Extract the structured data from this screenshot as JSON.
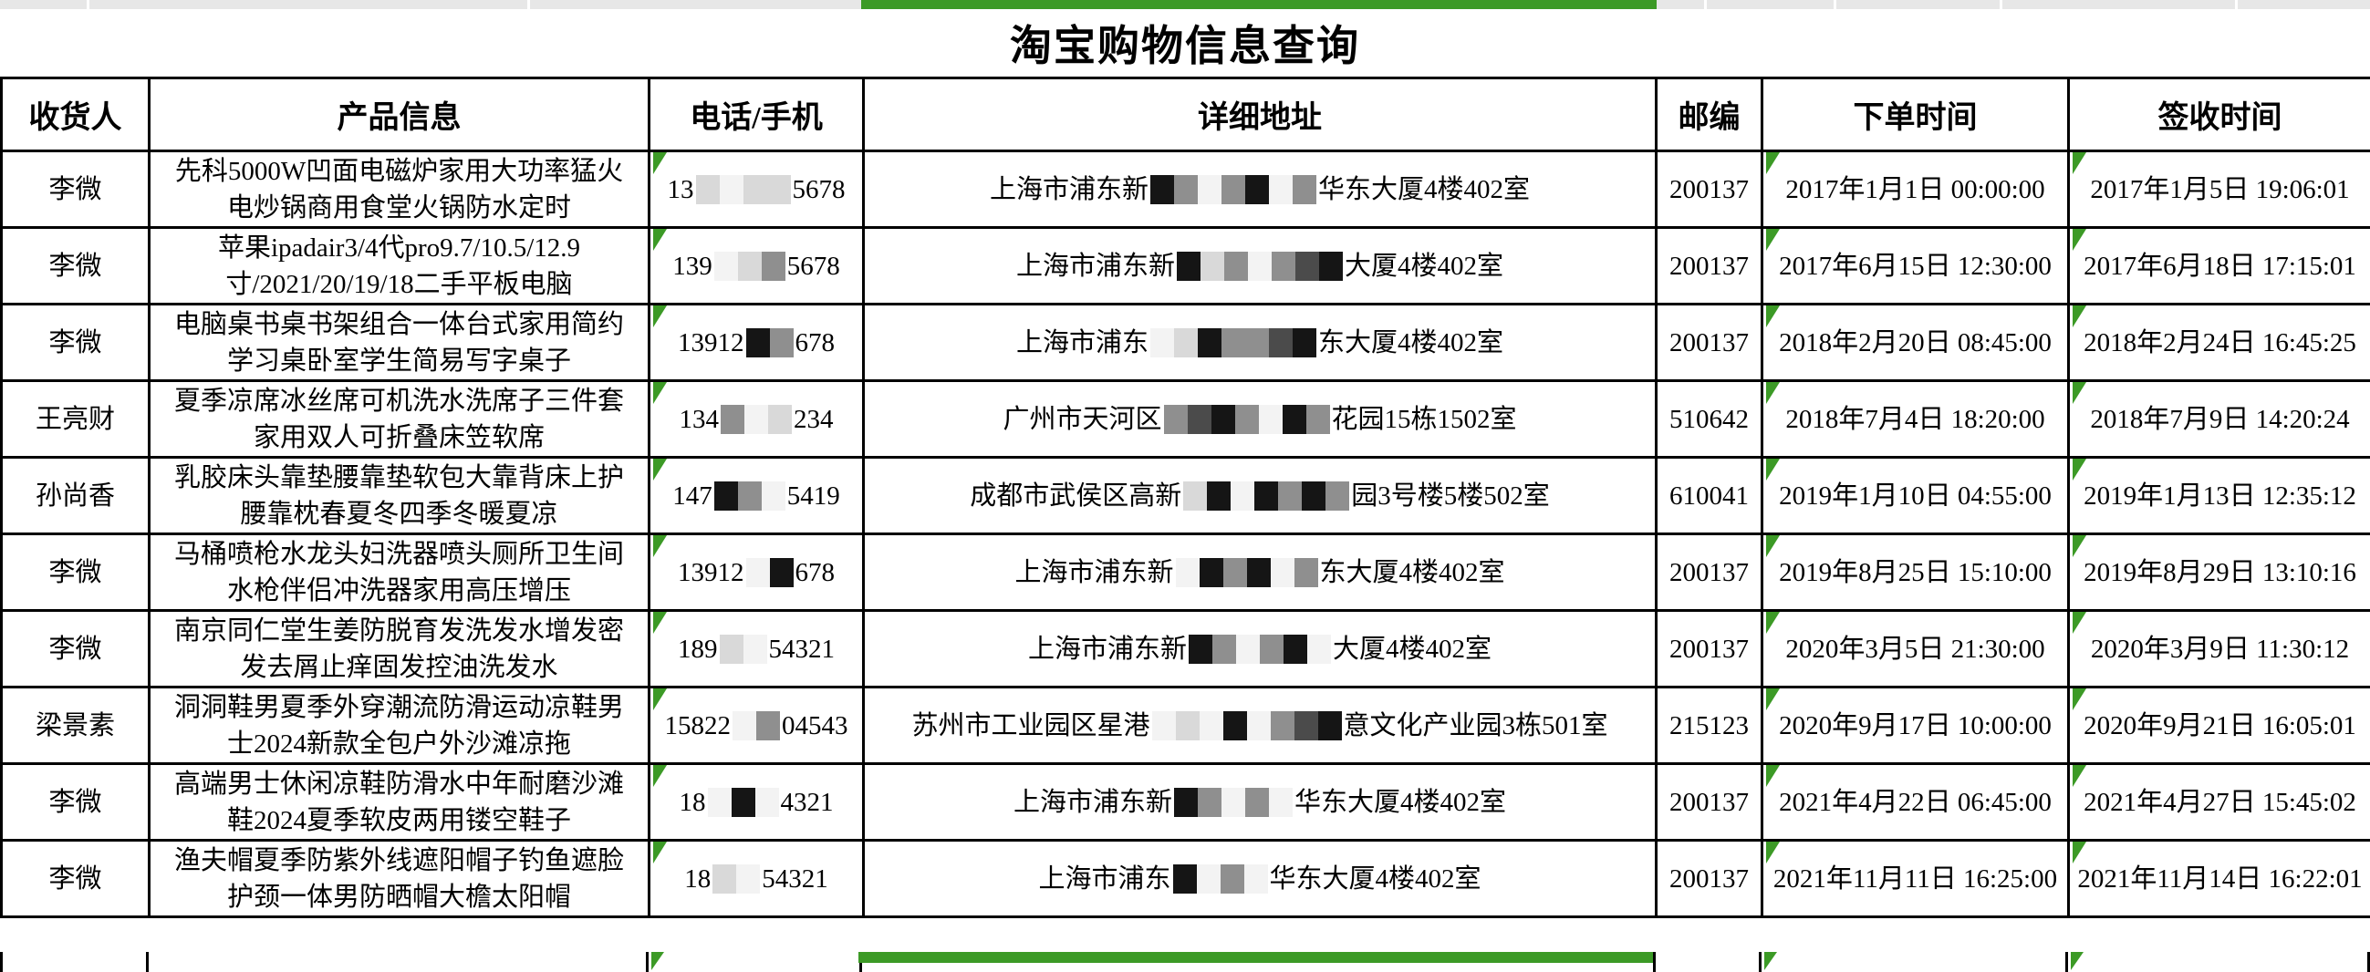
{
  "page": {
    "title": "淘宝购物信息查询"
  },
  "colors": {
    "accent_green": "#3c9a26",
    "grid_black": "#000000",
    "strip_grey": "#e7e7e7"
  },
  "redaction_palette": {
    "w": "#f3f3f3",
    "l": "#d9d9d9",
    "g": "#8f8f8f",
    "d": "#4b4b4b",
    "k": "#151515"
  },
  "table": {
    "headers": [
      "收货人",
      "产品信息",
      "电话/手机",
      "详细地址",
      "邮编",
      "下单时间",
      "签收时间"
    ],
    "rows": [
      {
        "recipient": "李微",
        "product": "先科5000W凹面电磁炉家用大功率猛火电炒锅商用食堂火锅防水定时",
        "phone": {
          "prefix": "13",
          "mosaic": "lwll",
          "suffix": "5678"
        },
        "address": {
          "prefix": "上海市浦东新",
          "mosaic": "kgwgkwg",
          "suffix": "华东大厦4楼402室"
        },
        "postcode": "200137",
        "order_time": "2017年1月1日 00:00:00",
        "sign_time": "2017年1月5日 19:06:01"
      },
      {
        "recipient": "李微",
        "product": "苹果ipadair3/4代pro9.7/10.5/12.9寸/2021/20/19/18二手平板电脑",
        "phone": {
          "prefix": "139",
          "mosaic": "wlg",
          "suffix": "5678"
        },
        "address": {
          "prefix": "上海市浦东新",
          "mosaic": "klgwgdk",
          "suffix": "大厦4楼402室"
        },
        "postcode": "200137",
        "order_time": "2017年6月15日 12:30:00",
        "sign_time": "2017年6月18日 17:15:01"
      },
      {
        "recipient": "李微",
        "product": "电脑桌书桌书架组合一体台式家用简约学习桌卧室学生简易写字桌子",
        "phone": {
          "prefix": "13912",
          "mosaic": "kg",
          "suffix": "678"
        },
        "address": {
          "prefix": "上海市浦东",
          "mosaic": "wlkggdk",
          "suffix": "东大厦4楼402室"
        },
        "postcode": "200137",
        "order_time": "2018年2月20日 08:45:00",
        "sign_time": "2018年2月24日 16:45:25"
      },
      {
        "recipient": "王亮财",
        "product": "夏季凉席冰丝席可机洗水洗席子三件套家用双人可折叠床笠软席",
        "phone": {
          "prefix": "134",
          "mosaic": "gwl",
          "suffix": "234"
        },
        "address": {
          "prefix": "广州市天河区",
          "mosaic": "gdkgwkg",
          "suffix": "花园15栋1502室"
        },
        "postcode": "510642",
        "order_time": "2018年7月4日 18:20:00",
        "sign_time": "2018年7月9日 14:20:24"
      },
      {
        "recipient": "孙尚香",
        "product": "乳胶床头靠垫腰靠垫软包大靠背床上护腰靠枕春夏冬四季冬暖夏凉",
        "phone": {
          "prefix": "147",
          "mosaic": "kgw",
          "suffix": "5419"
        },
        "address": {
          "prefix": "成都市武侯区高新",
          "mosaic": "lkwkgkg",
          "suffix": "园3号楼5楼502室"
        },
        "postcode": "610041",
        "order_time": "2019年1月10日 04:55:00",
        "sign_time": "2019年1月13日 12:35:12"
      },
      {
        "recipient": "李微",
        "product": "马桶喷枪水龙头妇洗器喷头厕所卫生间水枪伴侣冲洗器家用高压增压",
        "phone": {
          "prefix": "13912",
          "mosaic": "wk",
          "suffix": "678"
        },
        "address": {
          "prefix": "上海市浦东新",
          "mosaic": "wkgkwg",
          "suffix": "东大厦4楼402室"
        },
        "postcode": "200137",
        "order_time": "2019年8月25日 15:10:00",
        "sign_time": "2019年8月29日 13:10:16"
      },
      {
        "recipient": "李微",
        "product": "南京同仁堂生姜防脱育发洗发水增发密发去屑止痒固发控油洗发水",
        "phone": {
          "prefix": "189",
          "mosaic": "lw",
          "suffix": "54321"
        },
        "address": {
          "prefix": "上海市浦东新",
          "mosaic": "kgwgkw",
          "suffix": "大厦4楼402室"
        },
        "postcode": "200137",
        "order_time": "2020年3月5日 21:30:00",
        "sign_time": "2020年3月9日 11:30:12"
      },
      {
        "recipient": "梁景素",
        "product": "洞洞鞋男夏季外穿潮流防滑运动凉鞋男士2024新款全包户外沙滩凉拖",
        "phone": {
          "prefix": "15822",
          "mosaic": "wg",
          "suffix": "04543"
        },
        "address": {
          "prefix": "苏州市工业园区星港",
          "mosaic": "wlwkwgdk",
          "suffix": "意文化产业园3栋501室"
        },
        "postcode": "215123",
        "order_time": "2020年9月17日 10:00:00",
        "sign_time": "2020年9月21日 16:05:01"
      },
      {
        "recipient": "李微",
        "product": "高端男士休闲凉鞋防滑水中年耐磨沙滩鞋2024夏季软皮两用镂空鞋子",
        "phone": {
          "prefix": "18",
          "mosaic": "wkw",
          "suffix": "4321"
        },
        "address": {
          "prefix": "上海市浦东新",
          "mosaic": "kgwgw",
          "suffix": "华东大厦4楼402室"
        },
        "postcode": "200137",
        "order_time": "2021年4月22日 06:45:00",
        "sign_time": "2021年4月27日 15:45:02"
      },
      {
        "recipient": "李微",
        "product": "渔夫帽夏季防紫外线遮阳帽子钓鱼遮脸护颈一体男防晒帽大檐太阳帽",
        "phone": {
          "prefix": "18",
          "mosaic": "lw",
          "suffix": "54321"
        },
        "address": {
          "prefix": "上海市浦东",
          "mosaic": "kwgw",
          "suffix": "华东大厦4楼402室"
        },
        "postcode": "200137",
        "order_time": "2021年11月11日 16:25:00",
        "sign_time": "2021年11月14日 16:22:01"
      }
    ]
  }
}
